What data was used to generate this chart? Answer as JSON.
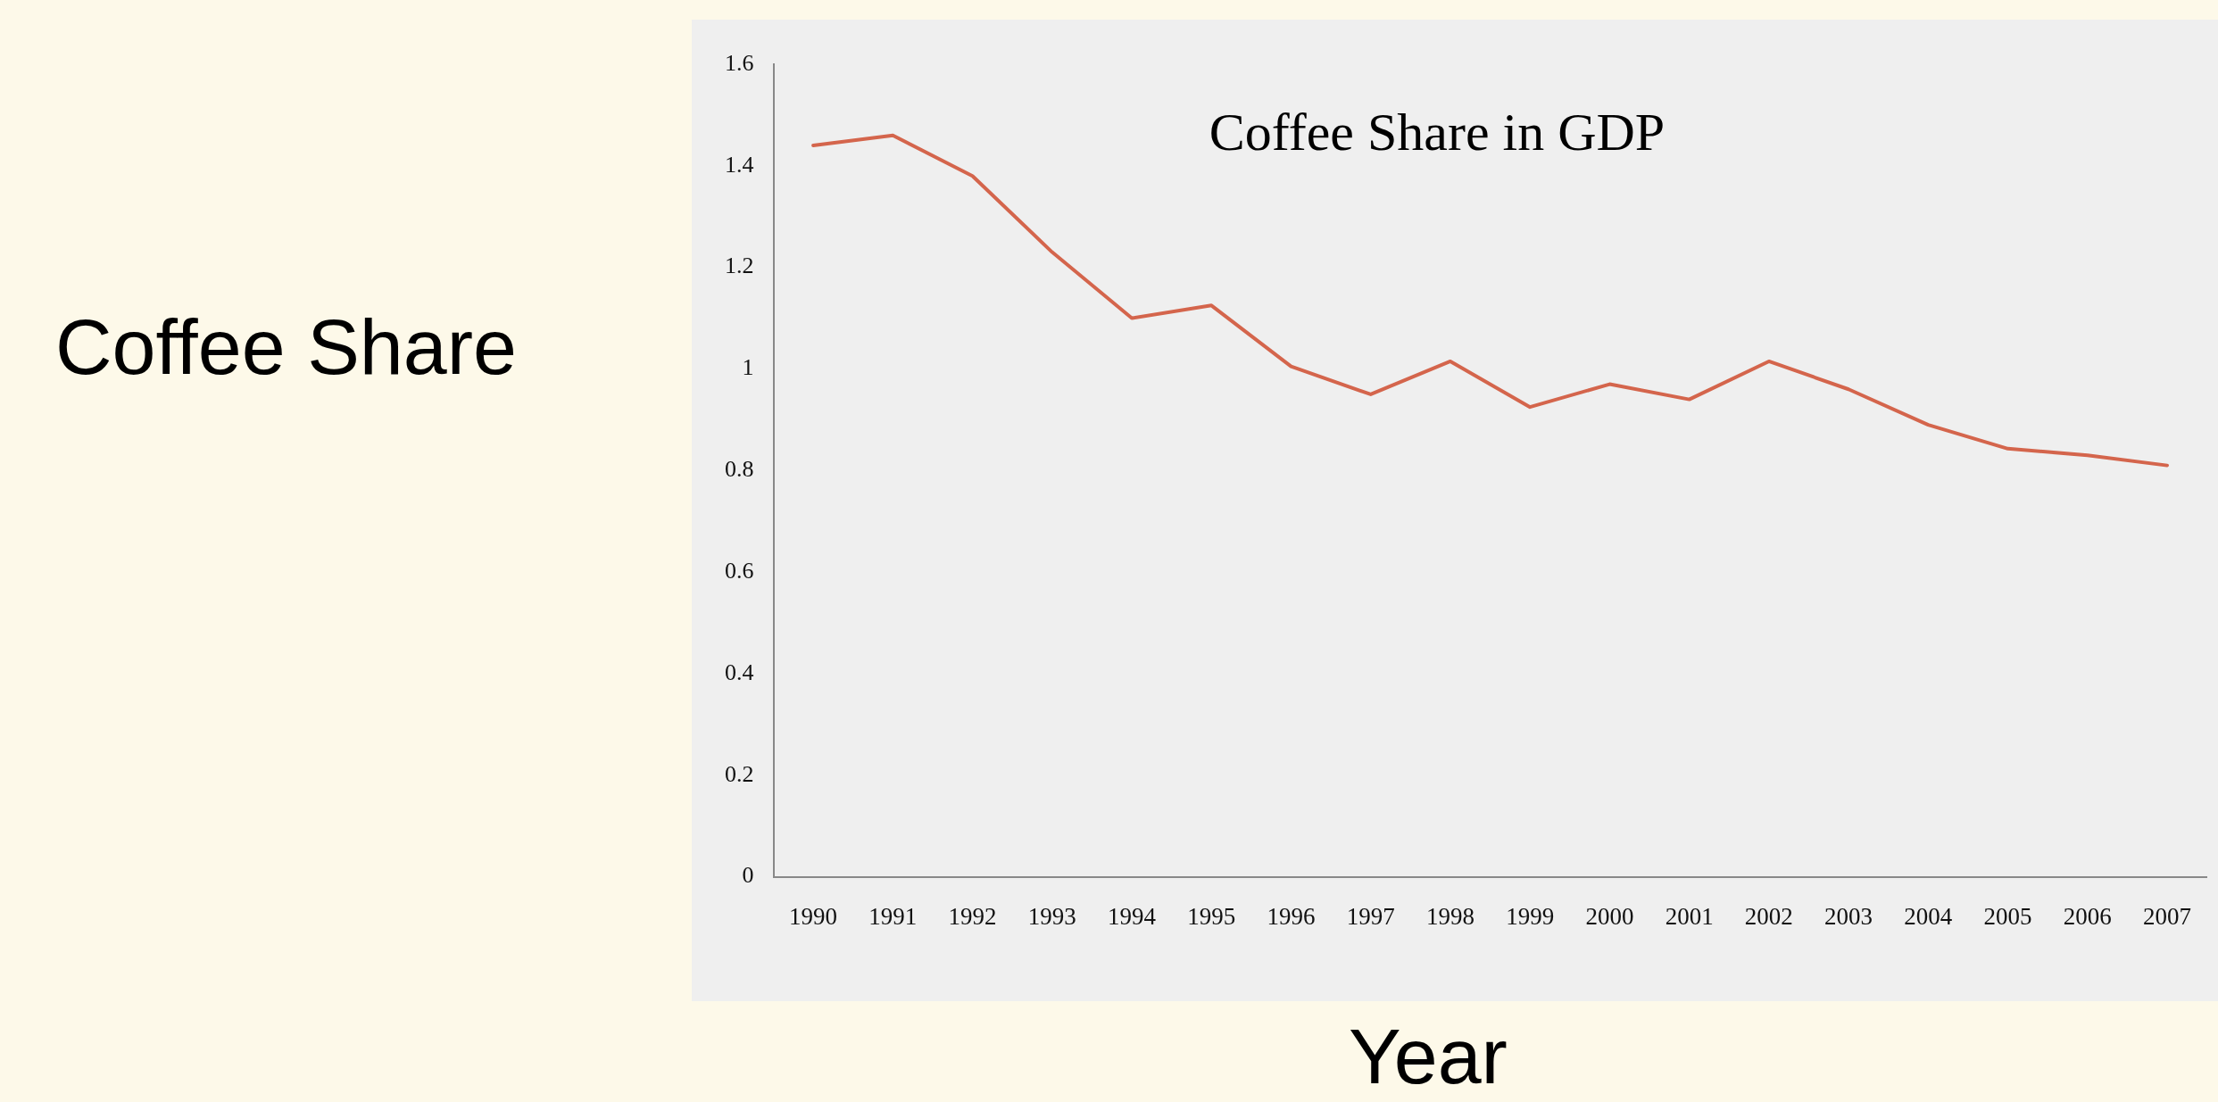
{
  "chart_data": {
    "type": "line",
    "title": "Coffee Share in GDP",
    "xlabel": "Year",
    "ylabel": "Coffee Share",
    "categories": [
      "1990",
      "1991",
      "1992",
      "1993",
      "1994",
      "1995",
      "1996",
      "1997",
      "1998",
      "1999",
      "2000",
      "2001",
      "2002",
      "2003",
      "2004",
      "2005",
      "2006",
      "2007"
    ],
    "series": [
      {
        "color": "#d4654c",
        "values": [
          1.44,
          1.46,
          1.38,
          1.23,
          1.1,
          1.125,
          1.005,
          0.95,
          1.015,
          0.925,
          0.97,
          0.94,
          1.015,
          0.96,
          0.89,
          0.843,
          0.83,
          0.81
        ]
      }
    ],
    "ylim": [
      0,
      1.6
    ],
    "yticks": [
      0,
      0.2,
      0.4,
      0.6,
      0.8,
      1,
      1.2,
      1.4,
      1.6
    ],
    "grid": false,
    "legend": false,
    "marker": "none",
    "line_style": "solid"
  }
}
